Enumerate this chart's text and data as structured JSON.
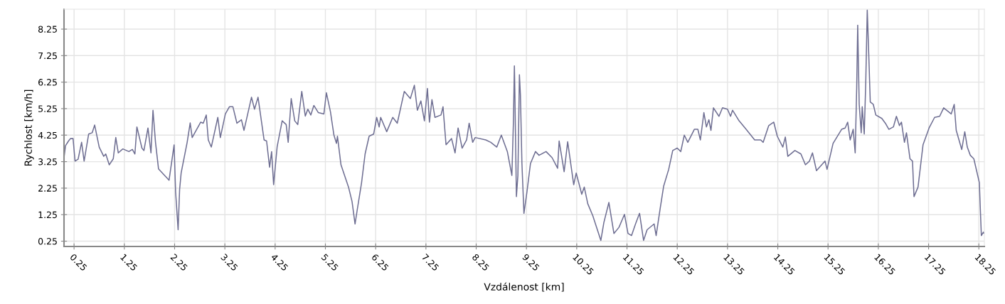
{
  "chart_data": {
    "type": "line",
    "xlabel": "Vzdálenost [km]",
    "ylabel": "Rychlost [km/h]",
    "xlim": [
      0.05,
      18.36
    ],
    "ylim": [
      0.05,
      9.0
    ],
    "xticks": [
      0.25,
      1.25,
      2.25,
      3.25,
      4.25,
      5.25,
      6.25,
      7.25,
      8.25,
      9.25,
      10.25,
      11.25,
      12.25,
      13.25,
      14.25,
      15.25,
      16.25,
      17.25,
      18.25
    ],
    "yticks": [
      0.25,
      1.25,
      2.25,
      3.25,
      4.25,
      5.25,
      6.25,
      7.25,
      8.25
    ],
    "grid": true,
    "line_style": "solid",
    "series": [
      {
        "color": "#6e6e92",
        "x": [
          0.05,
          0.08,
          0.14,
          0.18,
          0.23,
          0.27,
          0.33,
          0.4,
          0.45,
          0.54,
          0.61,
          0.66,
          0.75,
          0.84,
          0.88,
          0.95,
          1.03,
          1.08,
          1.13,
          1.22,
          1.34,
          1.41,
          1.46,
          1.5,
          1.6,
          1.64,
          1.72,
          1.78,
          1.82,
          1.87,
          1.93,
          2.14,
          2.24,
          2.27,
          2.32,
          2.35,
          2.38,
          2.5,
          2.56,
          2.6,
          2.77,
          2.82,
          2.88,
          2.92,
          2.98,
          3.11,
          3.16,
          3.26,
          3.34,
          3.41,
          3.49,
          3.58,
          3.63,
          3.7,
          3.78,
          3.84,
          3.91,
          4.03,
          4.08,
          4.14,
          4.18,
          4.22,
          4.29,
          4.39,
          4.47,
          4.51,
          4.57,
          4.64,
          4.7,
          4.78,
          4.85,
          4.9,
          4.96,
          5.02,
          5.11,
          5.22,
          5.27,
          5.35,
          5.42,
          5.47,
          5.49,
          5.56,
          5.71,
          5.78,
          5.84,
          5.88,
          5.97,
          6.04,
          6.12,
          6.21,
          6.27,
          6.32,
          6.35,
          6.47,
          6.59,
          6.68,
          6.82,
          6.94,
          7.02,
          7.08,
          7.15,
          7.22,
          7.28,
          7.32,
          7.37,
          7.43,
          7.55,
          7.59,
          7.65,
          7.76,
          7.83,
          7.89,
          7.97,
          8.06,
          8.11,
          8.18,
          8.23,
          8.44,
          8.54,
          8.66,
          8.75,
          8.87,
          8.96,
          8.99,
          9.01,
          9.02,
          9.05,
          9.08,
          9.11,
          9.13,
          9.16,
          9.2,
          9.26,
          9.33,
          9.43,
          9.5,
          9.64,
          9.76,
          9.87,
          9.9,
          10.0,
          10.07,
          10.19,
          10.24,
          10.35,
          10.4,
          10.47,
          10.57,
          10.73,
          10.79,
          10.89,
          10.99,
          11.09,
          11.16,
          11.2,
          11.27,
          11.34,
          11.42,
          11.5,
          11.58,
          11.65,
          11.79,
          11.83,
          11.91,
          11.98,
          12.08,
          12.16,
          12.25,
          12.32,
          12.39,
          12.46,
          12.59,
          12.66,
          12.71,
          12.78,
          12.83,
          12.88,
          12.92,
          12.97,
          13.08,
          13.15,
          13.25,
          13.31,
          13.35,
          13.48,
          13.62,
          13.79,
          13.91,
          13.96,
          14.07,
          14.17,
          14.24,
          14.35,
          14.4,
          14.45,
          14.59,
          14.71,
          14.8,
          14.88,
          14.94,
          15.02,
          15.19,
          15.23,
          15.35,
          15.52,
          15.59,
          15.64,
          15.69,
          15.75,
          15.79,
          15.82,
          15.84,
          15.87,
          15.91,
          15.93,
          15.97,
          16.0,
          16.03,
          16.06,
          16.09,
          16.15,
          16.2,
          16.32,
          16.39,
          16.46,
          16.55,
          16.61,
          16.67,
          16.71,
          16.77,
          16.81,
          16.88,
          16.93,
          16.96,
          17.04,
          17.14,
          17.26,
          17.37,
          17.47,
          17.55,
          17.7,
          17.76,
          17.8,
          17.91,
          17.97,
          18.02,
          18.08,
          18.15,
          18.26,
          18.28,
          18.3,
          18.34,
          18.36
        ],
        "values": [
          3.4,
          3.85,
          4.03,
          4.12,
          4.12,
          3.27,
          3.34,
          3.98,
          3.27,
          4.29,
          4.34,
          4.63,
          3.8,
          3.45,
          3.54,
          3.13,
          3.36,
          4.16,
          3.58,
          3.73,
          3.63,
          3.71,
          3.54,
          4.56,
          3.76,
          3.67,
          4.52,
          3.58,
          5.19,
          3.98,
          2.98,
          2.55,
          3.88,
          2.11,
          0.68,
          2.2,
          2.82,
          3.98,
          4.71,
          4.16,
          4.74,
          4.7,
          5.01,
          4.07,
          3.8,
          4.92,
          4.16,
          5.05,
          5.32,
          5.32,
          4.7,
          4.83,
          4.43,
          5.01,
          5.68,
          5.23,
          5.68,
          4.07,
          4.03,
          3.04,
          3.63,
          2.38,
          3.81,
          4.79,
          4.65,
          3.98,
          5.63,
          4.79,
          4.65,
          5.9,
          4.97,
          5.23,
          5.01,
          5.37,
          5.1,
          5.05,
          5.85,
          5.14,
          4.25,
          3.94,
          4.21,
          3.13,
          2.29,
          1.75,
          0.9,
          1.39,
          2.46,
          3.54,
          4.21,
          4.29,
          4.92,
          4.56,
          4.92,
          4.38,
          4.92,
          4.7,
          5.9,
          5.63,
          6.13,
          5.19,
          5.54,
          4.79,
          6.01,
          4.74,
          5.59,
          4.92,
          5.01,
          5.32,
          3.89,
          4.12,
          3.58,
          4.52,
          3.76,
          4.07,
          4.7,
          3.98,
          4.16,
          4.07,
          3.98,
          3.8,
          4.25,
          3.63,
          2.73,
          4.7,
          6.86,
          5.77,
          1.93,
          2.73,
          6.53,
          5.77,
          3.18,
          1.3,
          2.11,
          3.18,
          3.63,
          3.49,
          3.63,
          3.4,
          3.0,
          4.03,
          2.87,
          4.0,
          2.38,
          2.82,
          2.02,
          2.29,
          1.66,
          1.21,
          0.28,
          0.95,
          1.71,
          0.54,
          0.77,
          1.08,
          1.26,
          0.54,
          0.46,
          0.9,
          1.3,
          0.28,
          0.68,
          0.9,
          0.46,
          1.48,
          2.33,
          2.96,
          3.67,
          3.76,
          3.63,
          4.25,
          3.98,
          4.47,
          4.47,
          4.07,
          5.1,
          4.56,
          4.83,
          4.43,
          5.28,
          4.96,
          5.28,
          5.23,
          4.96,
          5.19,
          4.79,
          4.47,
          4.07,
          4.07,
          3.98,
          4.61,
          4.74,
          4.21,
          3.8,
          4.18,
          3.45,
          3.67,
          3.54,
          3.13,
          3.27,
          3.58,
          2.91,
          3.27,
          2.96,
          3.94,
          4.47,
          4.52,
          4.74,
          4.07,
          4.47,
          3.58,
          6.04,
          8.4,
          5.41,
          4.34,
          5.32,
          4.29,
          6.22,
          8.97,
          7.29,
          5.5,
          5.41,
          5.01,
          4.88,
          4.7,
          4.47,
          4.56,
          4.96,
          4.61,
          4.74,
          3.98,
          4.34,
          3.36,
          3.27,
          1.93,
          2.29,
          3.89,
          4.52,
          4.92,
          4.96,
          5.28,
          5.05,
          5.41,
          4.43,
          3.71,
          4.38,
          3.8,
          3.49,
          3.36,
          2.46,
          1.44,
          0.46,
          0.59,
          0.55
        ]
      }
    ]
  }
}
